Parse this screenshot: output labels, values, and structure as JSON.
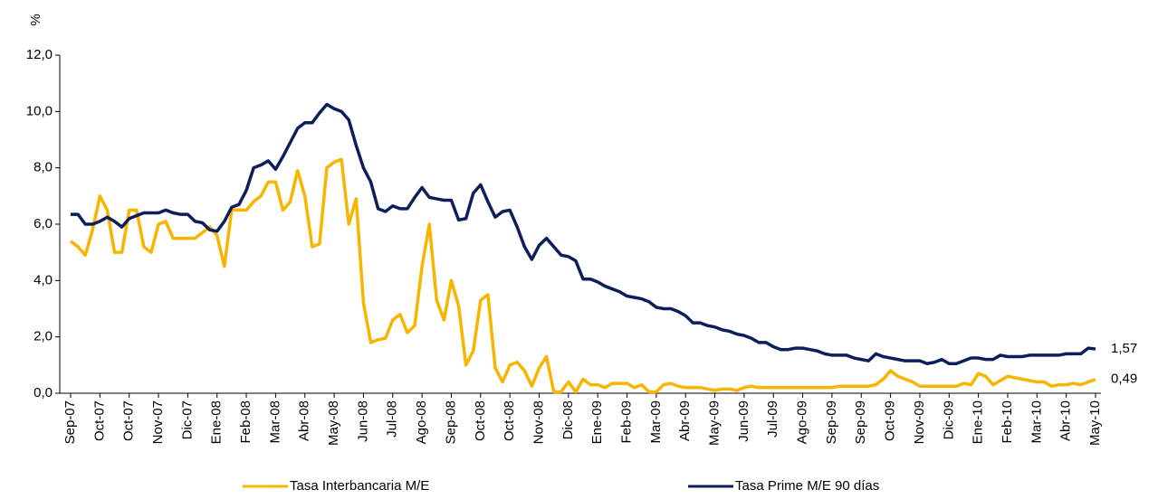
{
  "chart_data": {
    "type": "line",
    "y_label": "%",
    "categories": [
      "Sep-07",
      null,
      null,
      null,
      "Oct-07",
      null,
      null,
      null,
      "Oct-07",
      null,
      null,
      null,
      "Nov-07",
      null,
      null,
      null,
      "Dic-07",
      null,
      null,
      null,
      "Ene-08",
      null,
      null,
      null,
      "Feb-08",
      null,
      null,
      null,
      "Mar-08",
      null,
      null,
      null,
      "Abr-08",
      null,
      null,
      null,
      "May-08",
      null,
      null,
      null,
      "Jun-08",
      null,
      null,
      null,
      "Jul-08",
      null,
      null,
      null,
      "Ago-08",
      null,
      null,
      null,
      "Sep-08",
      null,
      null,
      null,
      "Oct-08",
      null,
      null,
      null,
      "Oct-08",
      null,
      null,
      null,
      "Nov-08",
      null,
      null,
      null,
      "Dic-08",
      null,
      null,
      null,
      "Ene-09",
      null,
      null,
      null,
      "Feb-09",
      null,
      null,
      null,
      "Mar-09",
      null,
      null,
      null,
      "Abr-09",
      null,
      null,
      null,
      "May-09",
      null,
      null,
      null,
      "Jun-09",
      null,
      null,
      null,
      "Jul-09",
      null,
      null,
      null,
      "Ago-09",
      null,
      null,
      null,
      "Sep-09",
      null,
      null,
      null,
      "Sep-09",
      null,
      null,
      null,
      "Oct-09",
      null,
      null,
      null,
      "Nov-09",
      null,
      null,
      null,
      "Dic-09",
      null,
      null,
      null,
      "Ene-10",
      null,
      null,
      null,
      "Feb-10",
      null,
      null,
      null,
      "Mar-10",
      null,
      null,
      null,
      "Abr-10",
      null,
      null,
      null,
      "May-10"
    ],
    "series": [
      {
        "name": "Tasa Interbancaria M/E",
        "color": "#f7b500",
        "values": [
          5.4,
          5.2,
          4.9,
          5.8,
          7.0,
          6.5,
          5.0,
          5.0,
          6.5,
          6.5,
          5.2,
          5.0,
          6.0,
          6.1,
          5.5,
          5.5,
          5.5,
          5.5,
          5.7,
          5.9,
          5.6,
          4.5,
          6.5,
          6.5,
          6.5,
          6.8,
          7.0,
          7.5,
          7.5,
          6.5,
          6.8,
          7.9,
          7.0,
          5.2,
          5.3,
          8.0,
          8.2,
          8.3,
          6.0,
          6.9,
          3.2,
          1.8,
          1.9,
          1.95,
          2.6,
          2.8,
          2.15,
          2.4,
          4.5,
          6.0,
          3.3,
          2.6,
          4.0,
          3.1,
          1.0,
          1.5,
          3.3,
          3.5,
          0.9,
          0.4,
          1.0,
          1.1,
          0.8,
          0.25,
          0.9,
          1.3,
          0.05,
          0.05,
          0.4,
          0.05,
          0.5,
          0.3,
          0.3,
          0.2,
          0.35,
          0.35,
          0.35,
          0.2,
          0.3,
          0.05,
          0.05,
          0.3,
          0.35,
          0.25,
          0.2,
          0.2,
          0.2,
          0.15,
          0.1,
          0.15,
          0.15,
          0.1,
          0.2,
          0.25,
          0.2,
          0.2,
          0.2,
          0.2,
          0.2,
          0.2,
          0.2,
          0.2,
          0.2,
          0.2,
          0.2,
          0.25,
          0.25,
          0.25,
          0.25,
          0.25,
          0.3,
          0.5,
          0.8,
          0.6,
          0.5,
          0.4,
          0.25,
          0.25,
          0.25,
          0.25,
          0.25,
          0.25,
          0.35,
          0.3,
          0.7,
          0.6,
          0.3,
          0.45,
          0.6,
          0.55,
          0.5,
          0.45,
          0.4,
          0.4,
          0.25,
          0.3,
          0.3,
          0.35,
          0.3,
          0.4,
          0.49
        ],
        "value_labels": [
          null,
          null,
          null,
          null,
          null,
          null,
          null,
          null,
          null,
          null,
          null,
          null,
          null,
          null,
          null,
          null,
          null,
          null,
          null,
          null,
          null,
          null,
          null,
          null,
          null,
          null,
          null,
          null,
          null,
          null,
          null,
          null,
          null,
          null,
          null,
          null,
          null,
          null,
          null,
          null,
          null,
          null,
          null,
          null,
          null,
          null,
          null,
          null,
          null,
          null,
          null,
          null,
          null,
          null,
          null,
          null,
          null,
          null,
          null,
          null,
          null,
          null,
          null,
          null,
          null,
          null,
          null,
          null,
          null,
          null,
          null,
          null,
          null,
          null,
          null,
          null,
          null,
          null,
          null,
          null,
          null,
          null,
          null,
          null,
          null,
          null,
          null,
          null,
          null,
          null,
          null,
          null,
          null,
          null,
          null,
          null,
          null,
          null,
          null,
          null,
          null,
          null,
          null,
          null,
          null,
          null,
          null,
          null,
          null,
          null,
          null,
          null,
          null,
          null,
          null,
          null,
          null,
          null,
          null,
          null,
          null,
          null,
          null,
          null,
          null,
          null,
          null,
          null,
          null,
          null,
          null,
          null,
          null,
          null,
          null,
          null,
          null,
          null,
          null,
          null,
          "0,49"
        ]
      },
      {
        "name": "Tasa Prime M/E 90 días",
        "color": "#0c1f5c",
        "values": [
          6.35,
          6.35,
          6.0,
          6.0,
          6.1,
          6.25,
          6.1,
          5.9,
          6.2,
          6.3,
          6.4,
          6.4,
          6.4,
          6.5,
          6.4,
          6.35,
          6.35,
          6.1,
          6.05,
          5.8,
          5.75,
          6.1,
          6.6,
          6.7,
          7.2,
          8.0,
          8.1,
          8.25,
          7.95,
          8.4,
          8.9,
          9.4,
          9.6,
          9.6,
          9.95,
          10.25,
          10.1,
          10.0,
          9.7,
          8.8,
          8.0,
          7.5,
          6.55,
          6.45,
          6.65,
          6.55,
          6.55,
          6.95,
          7.3,
          6.95,
          6.9,
          6.85,
          6.85,
          6.15,
          6.2,
          7.1,
          7.4,
          6.8,
          6.25,
          6.45,
          6.5,
          5.9,
          5.2,
          4.75,
          5.25,
          5.5,
          5.2,
          4.9,
          4.85,
          4.7,
          4.05,
          4.05,
          3.95,
          3.8,
          3.7,
          3.6,
          3.45,
          3.4,
          3.35,
          3.25,
          3.05,
          3.0,
          3.0,
          2.9,
          2.75,
          2.5,
          2.5,
          2.4,
          2.35,
          2.25,
          2.2,
          2.1,
          2.05,
          1.95,
          1.8,
          1.8,
          1.65,
          1.55,
          1.55,
          1.6,
          1.6,
          1.55,
          1.5,
          1.4,
          1.35,
          1.35,
          1.35,
          1.25,
          1.2,
          1.15,
          1.4,
          1.3,
          1.25,
          1.2,
          1.15,
          1.15,
          1.15,
          1.05,
          1.1,
          1.2,
          1.05,
          1.05,
          1.15,
          1.25,
          1.25,
          1.2,
          1.2,
          1.35,
          1.3,
          1.3,
          1.3,
          1.35,
          1.35,
          1.35,
          1.35,
          1.35,
          1.4,
          1.4,
          1.4,
          1.6,
          1.57
        ],
        "value_labels": [
          null,
          null,
          null,
          null,
          null,
          null,
          null,
          null,
          null,
          null,
          null,
          null,
          null,
          null,
          null,
          null,
          null,
          null,
          null,
          null,
          null,
          null,
          null,
          null,
          null,
          null,
          null,
          null,
          null,
          null,
          null,
          null,
          null,
          null,
          null,
          null,
          null,
          null,
          null,
          null,
          null,
          null,
          null,
          null,
          null,
          null,
          null,
          null,
          null,
          null,
          null,
          null,
          null,
          null,
          null,
          null,
          null,
          null,
          null,
          null,
          null,
          null,
          null,
          null,
          null,
          null,
          null,
          null,
          null,
          null,
          null,
          null,
          null,
          null,
          null,
          null,
          null,
          null,
          null,
          null,
          null,
          null,
          null,
          null,
          null,
          null,
          null,
          null,
          null,
          null,
          null,
          null,
          null,
          null,
          null,
          null,
          null,
          null,
          null,
          null,
          null,
          null,
          null,
          null,
          null,
          null,
          null,
          null,
          null,
          null,
          null,
          null,
          null,
          null,
          null,
          null,
          null,
          null,
          null,
          null,
          null,
          null,
          null,
          null,
          null,
          null,
          null,
          null,
          null,
          null,
          null,
          null,
          null,
          null,
          null,
          null,
          null,
          null,
          null,
          null,
          "1,57"
        ]
      }
    ],
    "ylim": [
      0,
      12
    ],
    "yticks": [
      {
        "value": 0,
        "label": "0,0"
      },
      {
        "value": 2,
        "label": "2,0"
      },
      {
        "value": 4,
        "label": "4,0"
      },
      {
        "value": 6,
        "label": "6,0"
      },
      {
        "value": 8,
        "label": "8,0"
      },
      {
        "value": 10,
        "label": "10,0"
      },
      {
        "value": 12,
        "label": "12,0"
      }
    ],
    "grid": false
  }
}
